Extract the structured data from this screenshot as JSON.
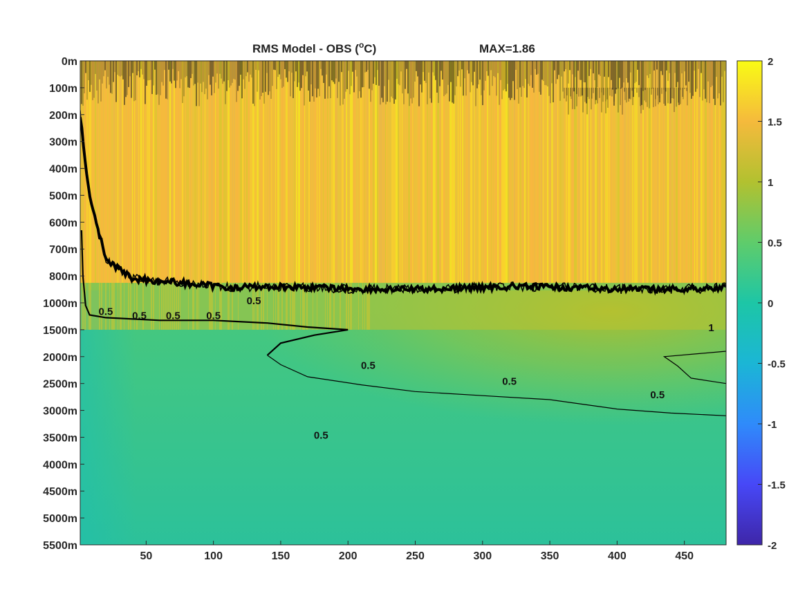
{
  "chart_data": {
    "type": "heatmap",
    "title": "RMS Model - OBS (°C)",
    "title_main": "RMS Model - OBS (",
    "title_sup": "o",
    "title_unit": "C)",
    "title_max": "MAX=1.86",
    "x_ticks": [
      50,
      100,
      150,
      200,
      250,
      300,
      350,
      400,
      450
    ],
    "x_tick_labels": [
      "50",
      "100",
      "150",
      "200",
      "250",
      "300",
      "350",
      "400",
      "450"
    ],
    "xlim": [
      1,
      481
    ],
    "y_tick_labels": [
      "0m",
      "100m",
      "200m",
      "300m",
      "400m",
      "500m",
      "600m",
      "700m",
      "800m",
      "1000m",
      "1500m",
      "2000m",
      "2500m",
      "3000m",
      "3500m",
      "4000m",
      "4500m",
      "5000m",
      "5500m"
    ],
    "colorbar": {
      "min": -2,
      "max": 2,
      "ticks": [
        2,
        1.5,
        1,
        0.5,
        0,
        -0.5,
        -1,
        -1.5,
        -2
      ],
      "tick_labels": [
        "2",
        "1.5",
        "1",
        "0.5",
        "0",
        "-0.5",
        "-1",
        "-1.5",
        "-2"
      ],
      "colormap": "parula",
      "colors": [
        "#3e26a8",
        "#4748f7",
        "#2f8bfa",
        "#1bb6d5",
        "#1dc6a6",
        "#5fcc6b",
        "#b2c130",
        "#f5ba3c",
        "#f9fb15"
      ]
    },
    "max_value": 1.86,
    "contour_levels": [
      0.5,
      1
    ],
    "contour_labels": [
      {
        "text": "0.5",
        "x": 180,
        "y_idx": 14.05
      },
      {
        "text": "0.5",
        "x": 215,
        "y_idx": 11.45
      },
      {
        "text": "0.5",
        "x": 320,
        "y_idx": 12.05
      },
      {
        "text": "0.5",
        "x": 430,
        "y_idx": 12.55
      },
      {
        "text": "1",
        "x": 470,
        "y_idx": 10.05
      },
      {
        "text": "0.5",
        "x": 130,
        "y_idx": 9.05
      },
      {
        "text": "0.5",
        "x": 100,
        "y_idx": 9.6
      },
      {
        "text": "0.5",
        "x": 70,
        "y_idx": 9.6
      },
      {
        "text": "0.5",
        "x": 45,
        "y_idx": 9.6
      },
      {
        "text": "0.5",
        "x": 20,
        "y_idx": 9.45
      }
    ],
    "field_description_levels": [
      {
        "depth_label": "0m-800m",
        "approx_value": 1.4
      },
      {
        "depth_label": "1000m-2000m",
        "approx_value": 0.9
      },
      {
        "depth_label": "2500m-5500m",
        "approx_value": 0.45
      }
    ]
  }
}
